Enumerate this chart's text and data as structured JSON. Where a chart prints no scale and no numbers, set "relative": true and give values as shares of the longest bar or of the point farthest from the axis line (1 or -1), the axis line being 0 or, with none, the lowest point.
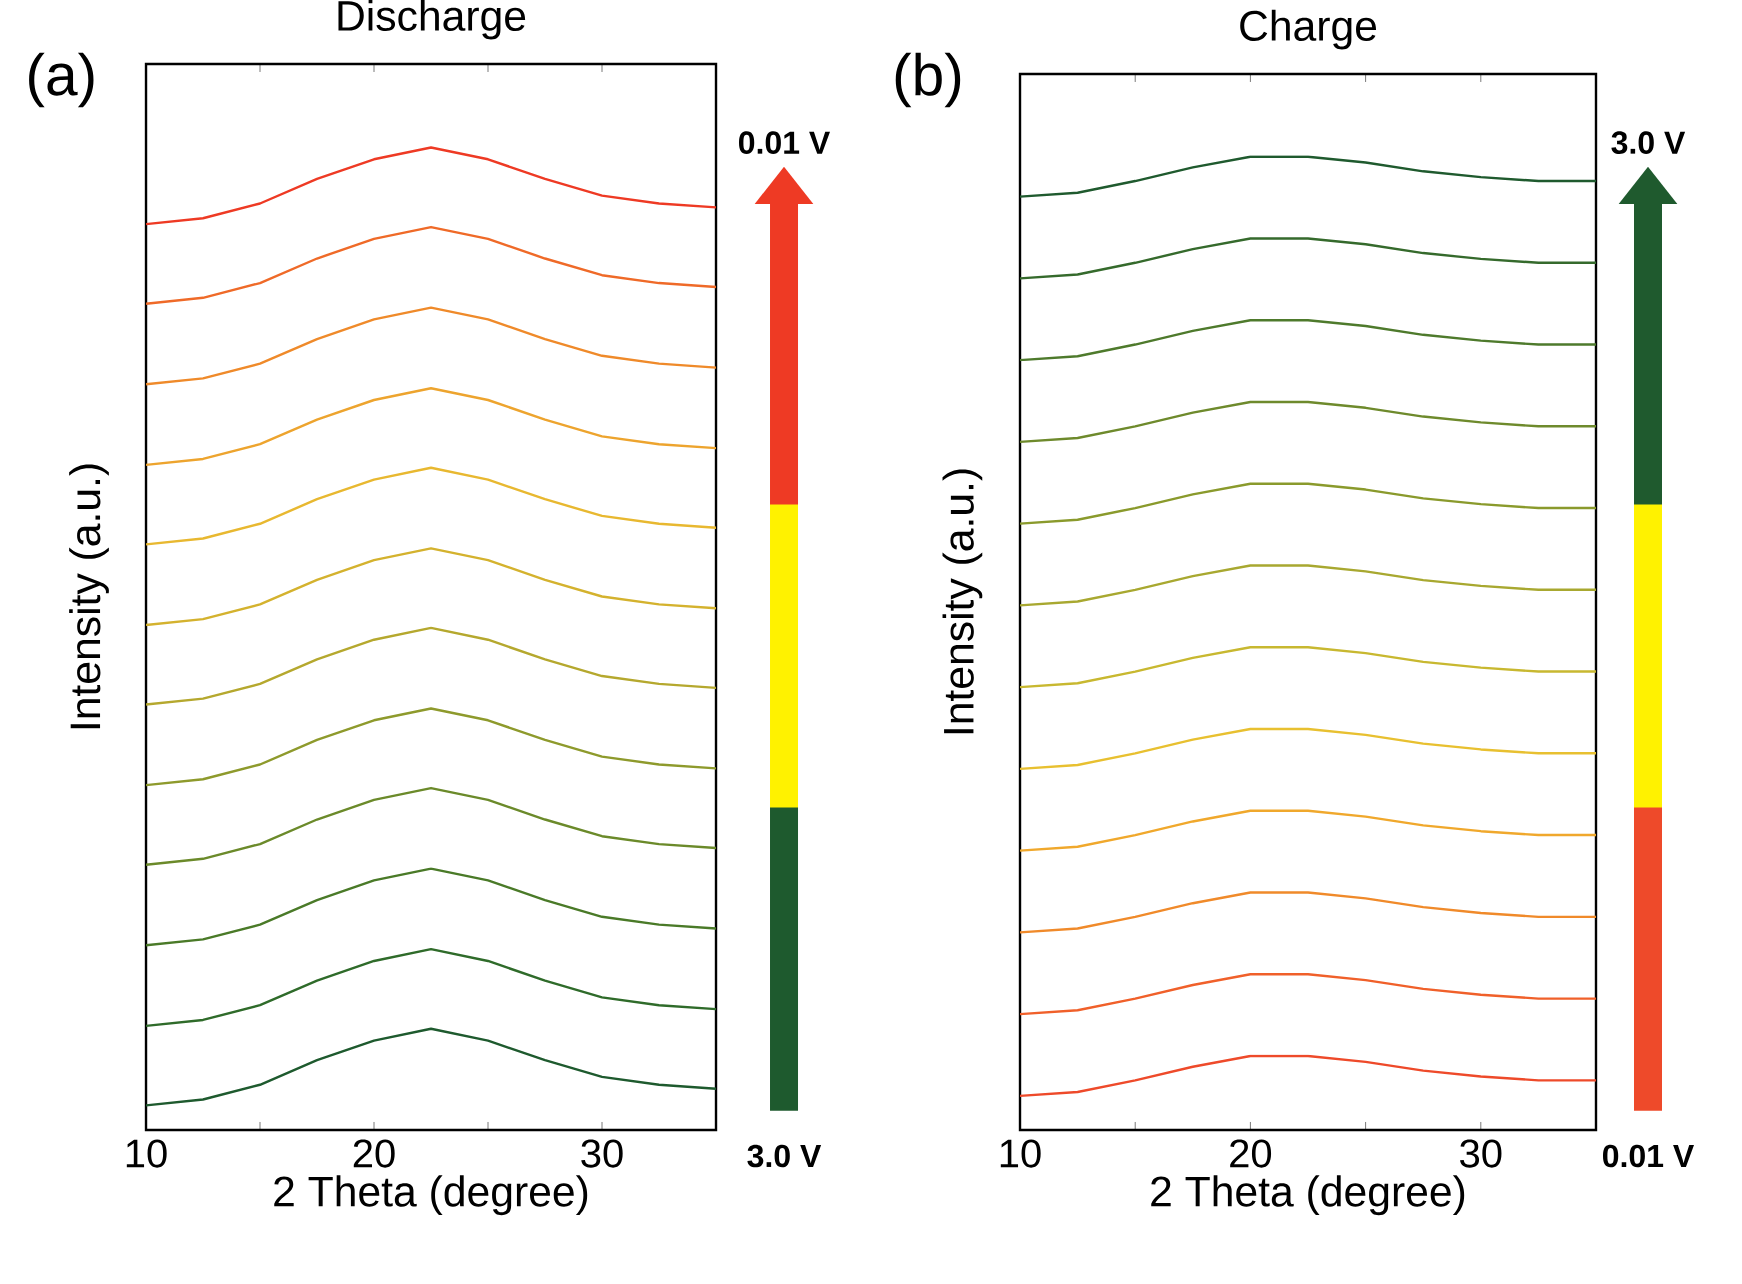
{
  "chart_data": [
    {
      "type": "line",
      "title": "Discharge",
      "xlabel": "2 Theta (degree)",
      "ylabel": "Intensity (a.u.)",
      "relative": true,
      "annotations": [
        "(a)",
        "0.01 V",
        "3.0 V"
      ],
      "xlim": [
        10,
        35
      ],
      "xticks": [
        10,
        {
          "value": 15,
          "label": null
        },
        20,
        {
          "value": 25,
          "label": null
        },
        30,
        {
          "value": 35,
          "label": null
        }
      ],
      "x": [
        10,
        12.5,
        15,
        17.5,
        20,
        22.5,
        25,
        27.5,
        30,
        32.5,
        35
      ],
      "series": [
        {
          "color": "#1e5a2e",
          "values": [
            0.025,
            0.031,
            0.046,
            0.071,
            0.091,
            0.103,
            0.091,
            0.071,
            0.054,
            0.046,
            0.042
          ]
        },
        {
          "color": "#2f6b2a",
          "values": [
            0.106,
            0.112,
            0.127,
            0.152,
            0.172,
            0.184,
            0.172,
            0.152,
            0.135,
            0.127,
            0.123
          ]
        },
        {
          "color": "#4a7a28",
          "values": [
            0.188,
            0.194,
            0.209,
            0.234,
            0.254,
            0.266,
            0.254,
            0.234,
            0.217,
            0.209,
            0.205
          ]
        },
        {
          "color": "#6b8a2a",
          "values": [
            0.27,
            0.276,
            0.291,
            0.316,
            0.336,
            0.348,
            0.336,
            0.316,
            0.299,
            0.291,
            0.287
          ]
        },
        {
          "color": "#8e9a2c",
          "values": [
            0.351,
            0.357,
            0.372,
            0.397,
            0.417,
            0.429,
            0.417,
            0.397,
            0.38,
            0.372,
            0.368
          ]
        },
        {
          "color": "#b5a82e",
          "values": [
            0.433,
            0.439,
            0.454,
            0.479,
            0.499,
            0.511,
            0.499,
            0.479,
            0.462,
            0.454,
            0.45
          ]
        },
        {
          "color": "#d4b22e",
          "values": [
            0.514,
            0.52,
            0.535,
            0.56,
            0.58,
            0.592,
            0.58,
            0.56,
            0.543,
            0.535,
            0.531
          ]
        },
        {
          "color": "#e8b830",
          "values": [
            0.596,
            0.602,
            0.617,
            0.642,
            0.662,
            0.674,
            0.662,
            0.642,
            0.625,
            0.617,
            0.613
          ]
        },
        {
          "color": "#eda42e",
          "values": [
            0.677,
            0.683,
            0.698,
            0.723,
            0.743,
            0.755,
            0.743,
            0.723,
            0.706,
            0.698,
            0.694
          ]
        },
        {
          "color": "#ef8a2a",
          "values": [
            0.759,
            0.765,
            0.78,
            0.805,
            0.825,
            0.837,
            0.825,
            0.805,
            0.788,
            0.78,
            0.776
          ]
        },
        {
          "color": "#ef6a28",
          "values": [
            0.841,
            0.847,
            0.862,
            0.887,
            0.907,
            0.919,
            0.907,
            0.887,
            0.87,
            0.862,
            0.858
          ]
        },
        {
          "color": "#ee3a24",
          "values": [
            0.922,
            0.928,
            0.943,
            0.968,
            0.988,
            1.0,
            0.988,
            0.968,
            0.951,
            0.943,
            0.939
          ]
        }
      ]
    },
    {
      "type": "line",
      "title": "Charge",
      "xlabel": "2 Theta (degree)",
      "ylabel": "Intensity (a.u.)",
      "relative": true,
      "annotations": [
        "(b)",
        "3.0 V",
        "0.01 V"
      ],
      "xlim": [
        10,
        35
      ],
      "xticks": [
        10,
        {
          "value": 15,
          "label": null
        },
        20,
        {
          "value": 25,
          "label": null
        },
        30,
        {
          "value": 35,
          "label": null
        }
      ],
      "x": [
        10,
        12.5,
        15,
        17.5,
        20,
        22.5,
        25,
        27.5,
        30,
        32.5,
        35
      ],
      "series": [
        {
          "color": "#ee4a2a",
          "values": [
            0.035,
            0.039,
            0.051,
            0.065,
            0.076,
            0.076,
            0.07,
            0.061,
            0.055,
            0.051,
            0.051
          ]
        },
        {
          "color": "#f0602a",
          "values": [
            0.119,
            0.123,
            0.135,
            0.149,
            0.16,
            0.16,
            0.154,
            0.145,
            0.139,
            0.135,
            0.135
          ]
        },
        {
          "color": "#f08a2a",
          "values": [
            0.203,
            0.207,
            0.219,
            0.233,
            0.244,
            0.244,
            0.238,
            0.229,
            0.223,
            0.219,
            0.219
          ]
        },
        {
          "color": "#f0a82c",
          "values": [
            0.287,
            0.291,
            0.303,
            0.317,
            0.328,
            0.328,
            0.322,
            0.313,
            0.307,
            0.303,
            0.303
          ]
        },
        {
          "color": "#e8c030",
          "values": [
            0.371,
            0.375,
            0.387,
            0.401,
            0.412,
            0.412,
            0.406,
            0.397,
            0.391,
            0.387,
            0.387
          ]
        },
        {
          "color": "#c8b830",
          "values": [
            0.455,
            0.459,
            0.471,
            0.485,
            0.496,
            0.496,
            0.49,
            0.481,
            0.475,
            0.471,
            0.471
          ]
        },
        {
          "color": "#a8a830",
          "values": [
            0.539,
            0.543,
            0.555,
            0.569,
            0.58,
            0.58,
            0.574,
            0.565,
            0.559,
            0.555,
            0.555
          ]
        },
        {
          "color": "#8a9a2c",
          "values": [
            0.623,
            0.627,
            0.639,
            0.653,
            0.664,
            0.664,
            0.658,
            0.649,
            0.643,
            0.639,
            0.639
          ]
        },
        {
          "color": "#6e8a2c",
          "values": [
            0.707,
            0.711,
            0.723,
            0.737,
            0.748,
            0.748,
            0.742,
            0.733,
            0.727,
            0.723,
            0.723
          ]
        },
        {
          "color": "#4e7a2c",
          "values": [
            0.791,
            0.795,
            0.807,
            0.821,
            0.832,
            0.832,
            0.826,
            0.817,
            0.811,
            0.807,
            0.807
          ]
        },
        {
          "color": "#356a2c",
          "values": [
            0.875,
            0.879,
            0.891,
            0.905,
            0.916,
            0.916,
            0.91,
            0.901,
            0.895,
            0.891,
            0.891
          ]
        },
        {
          "color": "#1f5a2e",
          "values": [
            0.959,
            0.963,
            0.975,
            0.989,
            1.0,
            1.0,
            0.994,
            0.985,
            0.979,
            0.975,
            0.975
          ]
        }
      ]
    }
  ]
}
